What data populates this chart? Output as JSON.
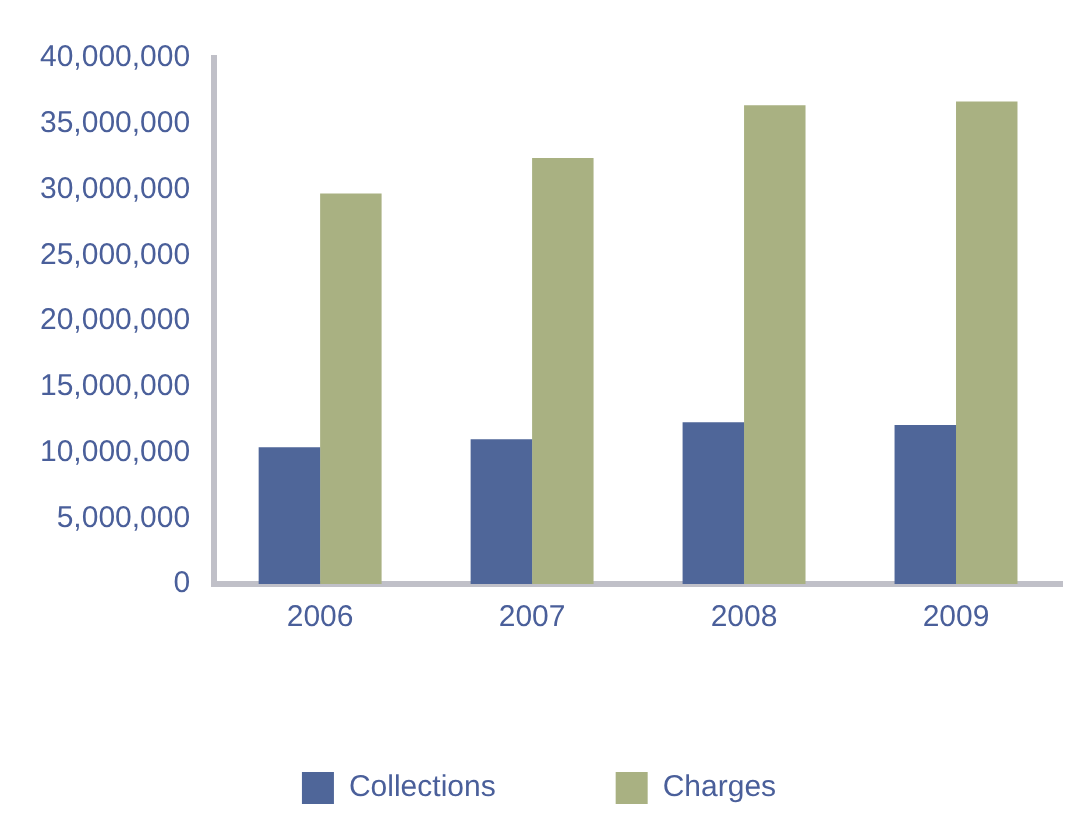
{
  "chart_data": {
    "type": "bar",
    "categories": [
      "2006",
      "2007",
      "2008",
      "2009"
    ],
    "series": [
      {
        "name": "Collections",
        "color": "#4f6699",
        "values": [
          10400000,
          11000000,
          12300000,
          12100000
        ]
      },
      {
        "name": "Charges",
        "color": "#a9b182",
        "values": [
          29700000,
          32400000,
          36400000,
          36700000
        ]
      }
    ],
    "ylim": [
      0,
      40000000
    ],
    "yticks": [
      {
        "value": 0,
        "label": "0"
      },
      {
        "value": 5000000,
        "label": "5,000,000"
      },
      {
        "value": 10000000,
        "label": "10,000,000"
      },
      {
        "value": 15000000,
        "label": "15,000,000"
      },
      {
        "value": 20000000,
        "label": "20,000,000"
      },
      {
        "value": 25000000,
        "label": "25,000,000"
      },
      {
        "value": 30000000,
        "label": "30,000,000"
      },
      {
        "value": 35000000,
        "label": "35,000,000"
      },
      {
        "value": 40000000,
        "label": "40,000,000"
      }
    ],
    "grid": false,
    "legend": "bottom"
  }
}
